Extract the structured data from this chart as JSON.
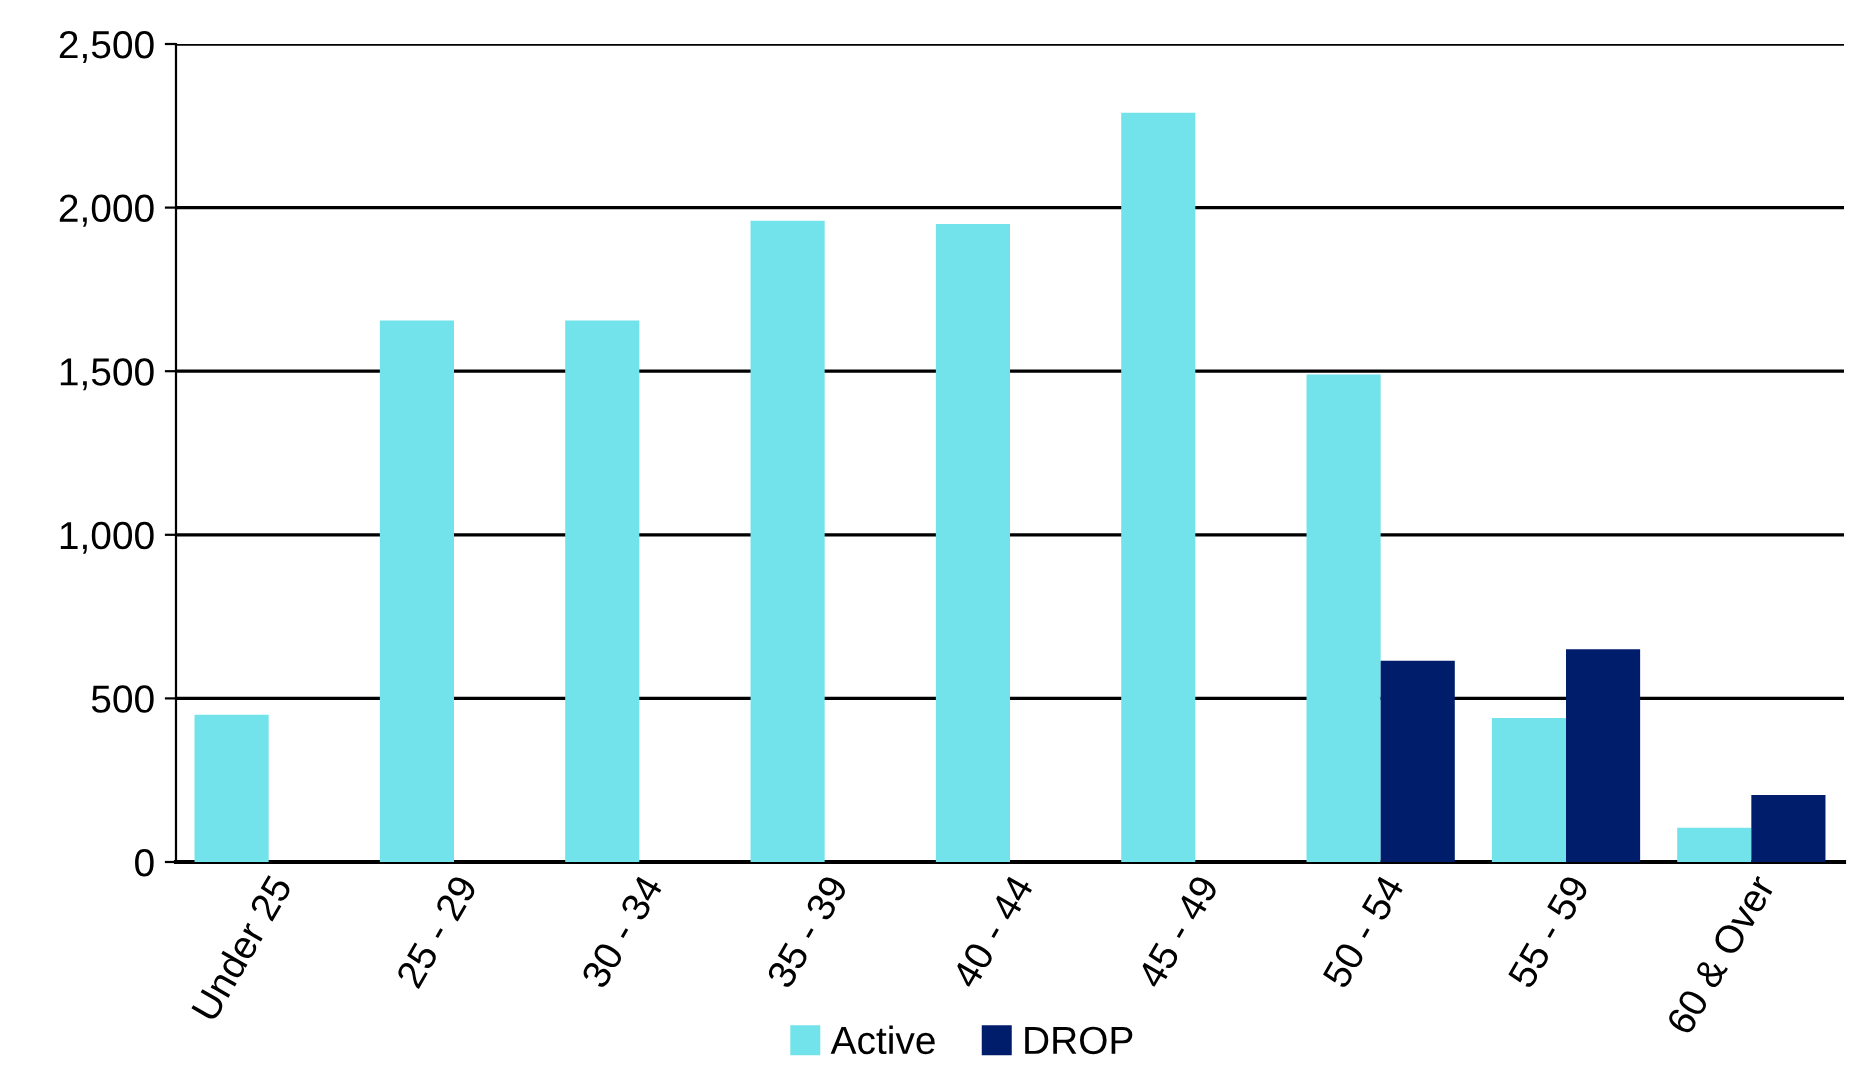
{
  "chart_data": {
    "type": "bar",
    "categories": [
      "Under 25",
      "25 - 29",
      "30 - 34",
      "35 - 39",
      "40 - 44",
      "45 - 49",
      "50 - 54",
      "55 - 59",
      "60 & Over"
    ],
    "series": [
      {
        "name": "Active",
        "color": "#72e3eb",
        "values": [
          450,
          1655,
          1655,
          1960,
          1950,
          2290,
          1490,
          440,
          105
        ]
      },
      {
        "name": "DROP",
        "color": "#001d6c",
        "values": [
          null,
          null,
          null,
          null,
          null,
          null,
          615,
          650,
          205
        ]
      }
    ],
    "ylim": [
      0,
      2500
    ],
    "yticks": [
      {
        "value": 0,
        "label": "0"
      },
      {
        "value": 500,
        "label": "500"
      },
      {
        "value": 1000,
        "label": "1,000"
      },
      {
        "value": 1500,
        "label": "1,500"
      },
      {
        "value": 2000,
        "label": "2,000"
      },
      {
        "value": 2500,
        "label": "2,500"
      }
    ],
    "grid": "y",
    "legend": "bottom"
  }
}
